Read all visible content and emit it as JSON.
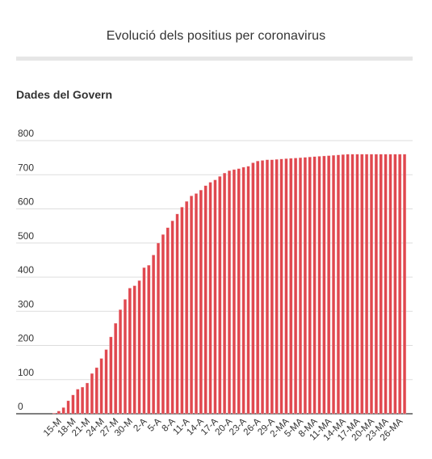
{
  "header": {
    "title": "Evolució dels positius per coronavirus",
    "subtitle": "Dades del Govern"
  },
  "chart_data": {
    "type": "bar",
    "title": "Evolució dels positius per coronavirus",
    "subtitle": "Dades del Govern",
    "xlabel": "",
    "ylabel": "",
    "ylim": [
      0,
      800
    ],
    "yticks": [
      0,
      100,
      200,
      300,
      400,
      500,
      600,
      700,
      800
    ],
    "grid": true,
    "bar_color": "#e0484f",
    "bar_edge_color": "#f7c9cb",
    "categories": [
      "14-M",
      "15-M",
      "16-M",
      "17-M",
      "18-M",
      "19-M",
      "20-M",
      "21-M",
      "22-M",
      "23-M",
      "24-M",
      "25-M",
      "26-M",
      "27-M",
      "28-M",
      "29-M",
      "30-M",
      "31-M",
      "1-A",
      "2-A",
      "3-A",
      "4-A",
      "5-A",
      "6-A",
      "7-A",
      "8-A",
      "9-A",
      "10-A",
      "11-A",
      "12-A",
      "13-A",
      "14-A",
      "15-A",
      "16-A",
      "17-A",
      "18-A",
      "19-A",
      "20-A",
      "21-A",
      "22-A",
      "23-A",
      "24-A",
      "25-A",
      "26-A",
      "27-A",
      "28-A",
      "29-A",
      "30-A",
      "1-MA",
      "2-MA",
      "3-MA",
      "4-MA",
      "5-MA",
      "6-MA",
      "7-MA",
      "8-MA",
      "9-MA",
      "10-MA",
      "11-MA",
      "12-MA",
      "13-MA",
      "14-MA",
      "15-MA",
      "16-MA",
      "17-MA",
      "18-MA",
      "19-MA",
      "20-MA",
      "21-MA",
      "22-MA",
      "23-MA",
      "24-MA",
      "25-MA",
      "26-MA",
      "27-MA"
    ],
    "tick_labels": [
      "15-M",
      "18-M",
      "21-M",
      "24-M",
      "27-M",
      "30-M",
      "2-A",
      "5-A",
      "8-A",
      "11-A",
      "14-A",
      "17-A",
      "20-A",
      "23-A",
      "26-A",
      "29-A",
      "2-MA",
      "5-MA",
      "8-MA",
      "11-MA",
      "14-MA",
      "17-MA",
      "20-MA",
      "23-MA",
      "26-MA"
    ],
    "values": [
      2,
      8,
      18,
      38,
      55,
      72,
      78,
      90,
      118,
      135,
      162,
      188,
      225,
      265,
      305,
      335,
      368,
      375,
      390,
      428,
      435,
      465,
      500,
      525,
      545,
      565,
      585,
      605,
      622,
      638,
      645,
      655,
      668,
      678,
      685,
      695,
      705,
      712,
      715,
      718,
      722,
      725,
      735,
      740,
      742,
      744,
      744,
      745,
      746,
      747,
      748,
      749,
      750,
      751,
      752,
      753,
      754,
      755,
      756,
      757,
      758,
      759,
      760,
      760,
      760,
      760,
      760,
      760,
      760,
      760,
      760,
      760,
      760,
      760,
      760
    ]
  }
}
